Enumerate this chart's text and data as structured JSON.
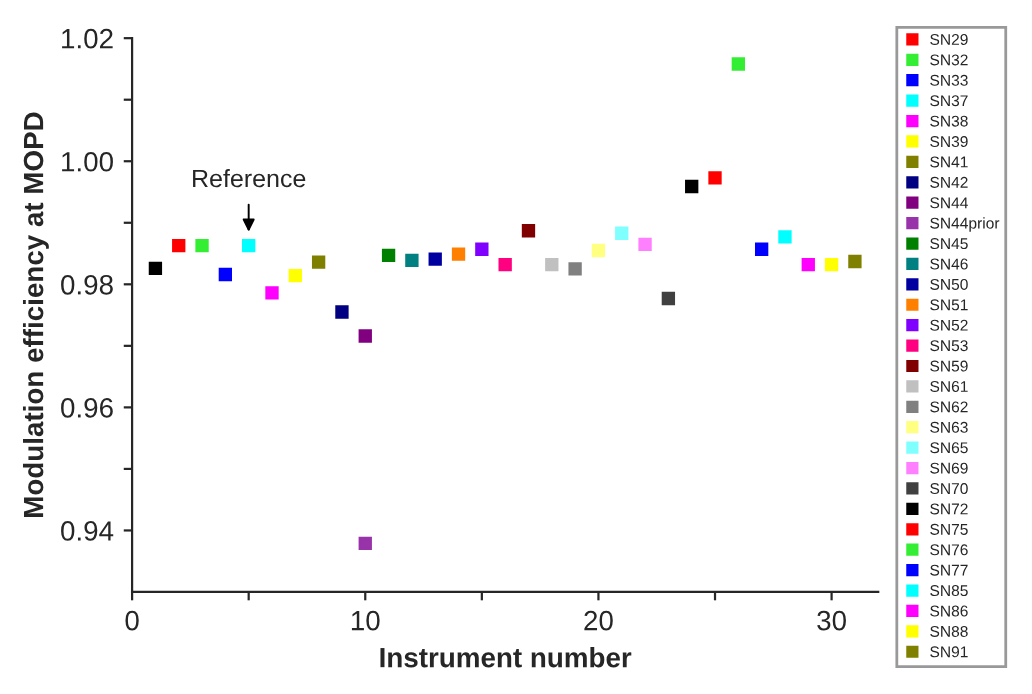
{
  "chart_data": {
    "type": "scatter",
    "xlabel": "Instrument number",
    "ylabel": "Modulation efficiency at MOPD",
    "xlim": [
      0,
      32
    ],
    "ylim": [
      0.93,
      1.02
    ],
    "xticks": [
      0,
      {
        "value": 5,
        "label": null
      },
      10,
      {
        "value": 15,
        "label": null
      },
      20,
      {
        "value": 25,
        "label": null
      },
      30
    ],
    "yticks": [
      0.94,
      {
        "value": 0.95,
        "label": null
      },
      0.96,
      {
        "value": 0.97,
        "label": null
      },
      0.98,
      {
        "value": 0.99,
        "label": null
      },
      {
        "value": 1.0,
        "label": "1.00"
      },
      {
        "value": 1.01,
        "label": null
      },
      1.02
    ],
    "marker": "square",
    "legend": "right",
    "grid": false,
    "annotations": [
      {
        "text": "Reference",
        "x": 5,
        "y": 0.9863
      }
    ],
    "series": [
      {
        "color": "#000000",
        "x": [
          1
        ],
        "values": [
          0.9826
        ]
      },
      {
        "name": "SN29",
        "color": "#ff0000",
        "x": [
          2
        ],
        "values": [
          0.9863
        ]
      },
      {
        "name": "SN32",
        "color": "#33ee33",
        "x": [
          3
        ],
        "values": [
          0.9863
        ]
      },
      {
        "name": "SN33",
        "color": "#0000ff",
        "x": [
          4
        ],
        "values": [
          0.9816
        ]
      },
      {
        "name": "SN37",
        "color": "#00ffff",
        "x": [
          5
        ],
        "values": [
          0.9863
        ]
      },
      {
        "name": "SN38",
        "color": "#ff00ff",
        "x": [
          6
        ],
        "values": [
          0.9786
        ]
      },
      {
        "name": "SN39",
        "color": "#ffff00",
        "x": [
          7
        ],
        "values": [
          0.9814
        ]
      },
      {
        "name": "SN41",
        "color": "#808000",
        "x": [
          8
        ],
        "values": [
          0.9836
        ]
      },
      {
        "name": "SN42",
        "color": "#000080",
        "x": [
          9
        ],
        "values": [
          0.9755
        ]
      },
      {
        "name": "SN44",
        "color": "#800080",
        "x": [
          10
        ],
        "values": [
          0.9716
        ]
      },
      {
        "name": "SN44prior",
        "color": "#9933aa",
        "x": [
          10
        ],
        "values": [
          0.9379
        ]
      },
      {
        "name": "SN45",
        "color": "#008000",
        "x": [
          11
        ],
        "values": [
          0.9847
        ]
      },
      {
        "name": "SN46",
        "color": "#008080",
        "x": [
          12
        ],
        "values": [
          0.9839
        ]
      },
      {
        "name": "SN50",
        "color": "#0000a0",
        "x": [
          13
        ],
        "values": [
          0.9841
        ]
      },
      {
        "name": "SN51",
        "color": "#ff8000",
        "x": [
          14
        ],
        "values": [
          0.9849
        ]
      },
      {
        "name": "SN52",
        "color": "#8000ff",
        "x": [
          15
        ],
        "values": [
          0.9857
        ]
      },
      {
        "name": "SN53",
        "color": "#ff0080",
        "x": [
          16
        ],
        "values": [
          0.9832
        ]
      },
      {
        "name": "SN59",
        "color": "#800000",
        "x": [
          17
        ],
        "values": [
          0.9887
        ]
      },
      {
        "name": "SN61",
        "color": "#c0c0c0",
        "x": [
          18
        ],
        "values": [
          0.9832
        ]
      },
      {
        "name": "SN62",
        "color": "#808080",
        "x": [
          19
        ],
        "values": [
          0.9825
        ]
      },
      {
        "name": "SN63",
        "color": "#ffff80",
        "x": [
          20
        ],
        "values": [
          0.9855
        ]
      },
      {
        "name": "SN65",
        "color": "#80ffff",
        "x": [
          21
        ],
        "values": [
          0.9883
        ]
      },
      {
        "name": "SN69",
        "color": "#ff80ff",
        "x": [
          22
        ],
        "values": [
          0.9865
        ]
      },
      {
        "name": "SN70",
        "color": "#404040",
        "x": [
          23
        ],
        "values": [
          0.9777
        ]
      },
      {
        "name": "SN72",
        "color": "#000000",
        "x": [
          24
        ],
        "values": [
          0.9959
        ]
      },
      {
        "name": "SN75",
        "color": "#ff0000",
        "x": [
          25
        ],
        "values": [
          0.9973
        ]
      },
      {
        "name": "SN76",
        "color": "#33ee33",
        "x": [
          26
        ],
        "values": [
          1.0158
        ]
      },
      {
        "name": "SN77",
        "color": "#0000ff",
        "x": [
          27
        ],
        "values": [
          0.9857
        ]
      },
      {
        "name": "SN85",
        "color": "#00ffff",
        "x": [
          28
        ],
        "values": [
          0.9877
        ]
      },
      {
        "name": "SN86",
        "color": "#ff00ff",
        "x": [
          29
        ],
        "values": [
          0.9832
        ]
      },
      {
        "name": "SN88",
        "color": "#ffff00",
        "x": [
          30
        ],
        "values": [
          0.9832
        ]
      },
      {
        "name": "SN91",
        "color": "#808000",
        "x": [
          31
        ],
        "values": [
          0.9837
        ]
      }
    ]
  }
}
